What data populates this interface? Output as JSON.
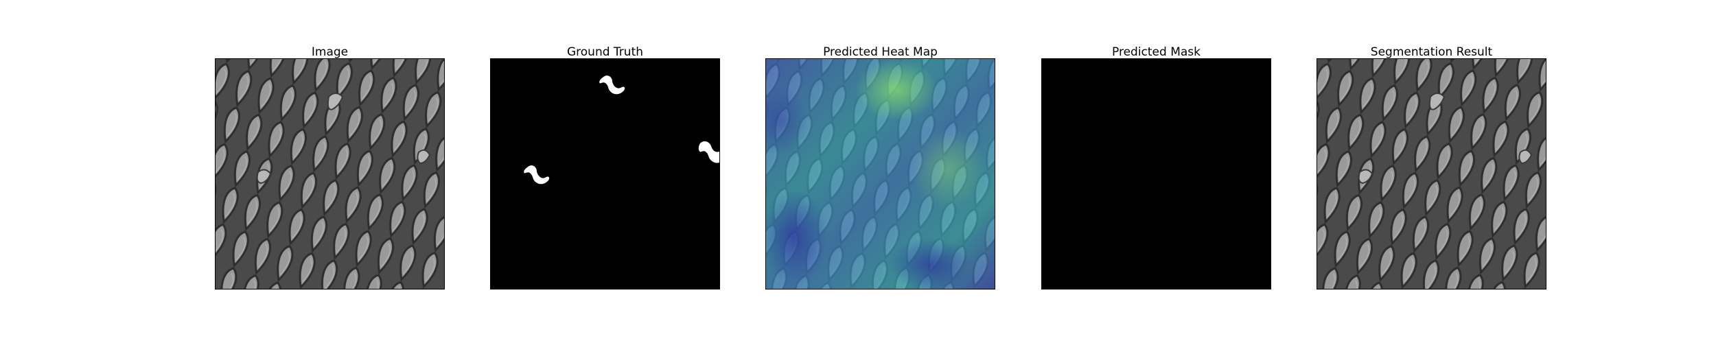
{
  "figure": {
    "background": "#ffffff",
    "panels": [
      {
        "id": "image",
        "title": "Image",
        "content": "textured-mesh-grayscale"
      },
      {
        "id": "ground-truth",
        "title": "Ground Truth",
        "content": "binary-defect-mask"
      },
      {
        "id": "heat-map",
        "title": "Predicted Heat Map",
        "content": "heatmap-overlay"
      },
      {
        "id": "predicted-mask",
        "title": "Predicted Mask",
        "content": "empty-mask"
      },
      {
        "id": "segmentation",
        "title": "Segmentation Result",
        "content": "textured-mesh-grayscale"
      }
    ]
  },
  "colors": {
    "mesh_cell": "#8c8c8c",
    "mesh_wire": "#3c3c3c",
    "mask_background": "#000000",
    "mask_defect": "#ffffff",
    "heat_low": "#3b4fb8",
    "heat_mid": "#2fa6b0",
    "heat_high": "#7fd06a"
  }
}
